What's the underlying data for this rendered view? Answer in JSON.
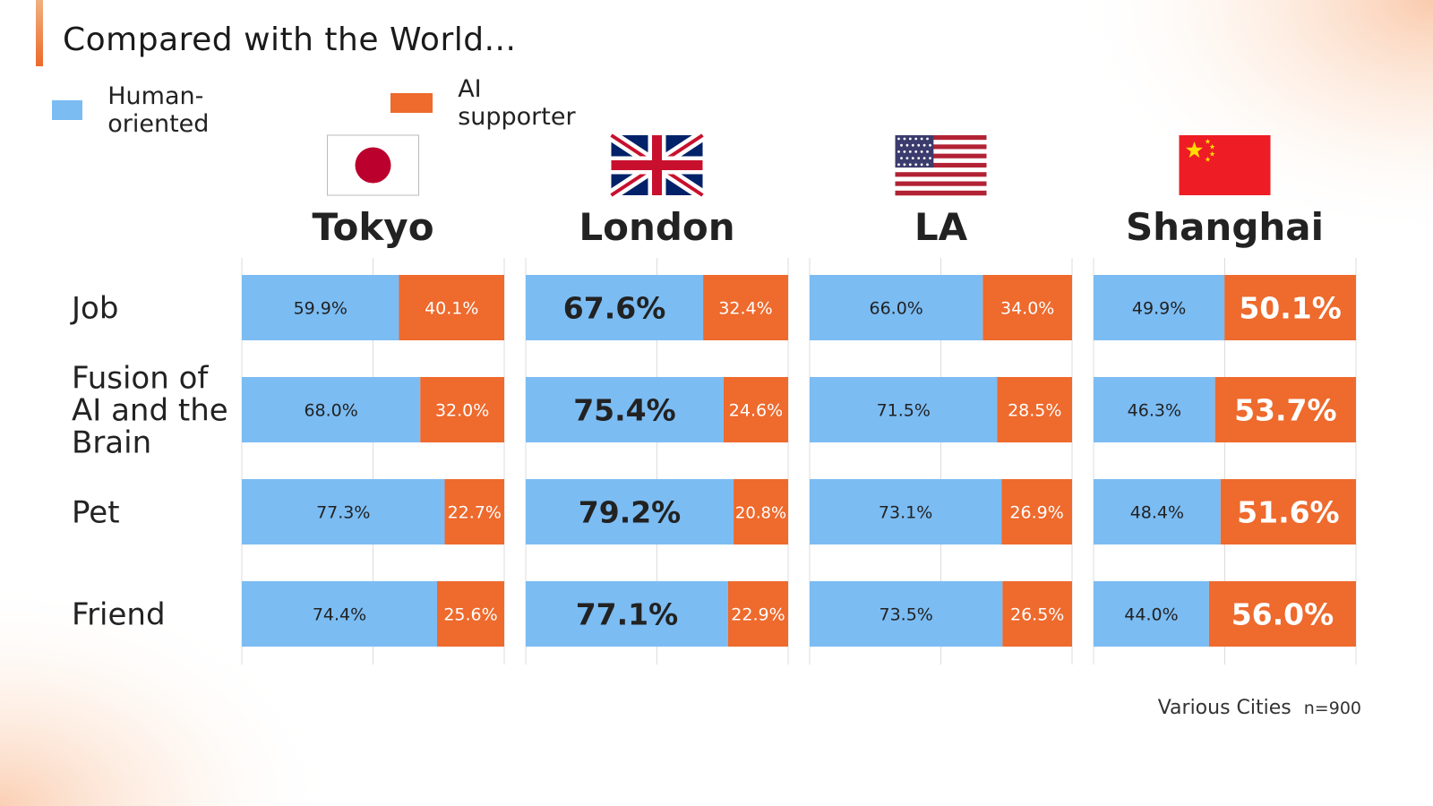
{
  "title": "Compared with the World...",
  "legend": [
    {
      "label": "Human-oriented",
      "color": "#7bbcf3"
    },
    {
      "label": "AI supporter",
      "color": "#ee6a2d"
    }
  ],
  "footnote": {
    "source": "Various Cities",
    "n": "n=900"
  },
  "chart_data": {
    "type": "bar",
    "orientation": "horizontal",
    "stacked": "100%",
    "categories": [
      "Job",
      "Fusion of AI and the Brain",
      "Pet",
      "Friend"
    ],
    "colors": {
      "human": "#7bbcf3",
      "ai": "#ee6a2d"
    },
    "panels": [
      {
        "city": "Tokyo",
        "flag": "japan-flag",
        "series": [
          {
            "name": "Human-oriented",
            "values": [
              59.9,
              68.0,
              77.3,
              74.4
            ],
            "labels": [
              "59.9%",
              "68.0%",
              "77.3%",
              "74.4%"
            ]
          },
          {
            "name": "AI supporter",
            "values": [
              40.1,
              32.0,
              22.7,
              25.6
            ],
            "labels": [
              "40.1%",
              "32.0%",
              "22.7%",
              "25.6%"
            ]
          }
        ]
      },
      {
        "city": "London",
        "flag": "uk-flag",
        "series": [
          {
            "name": "Human-oriented",
            "values": [
              67.6,
              75.4,
              79.2,
              77.1
            ],
            "labels": [
              "67.6%",
              "75.4%",
              "79.2%",
              "77.1%"
            ]
          },
          {
            "name": "AI supporter",
            "values": [
              32.4,
              24.6,
              20.8,
              22.9
            ],
            "labels": [
              "32.4%",
              "24.6%",
              "20.8%",
              "22.9%"
            ]
          }
        ]
      },
      {
        "city": "LA",
        "flag": "usa-flag",
        "series": [
          {
            "name": "Human-oriented",
            "values": [
              66.0,
              71.5,
              73.1,
              73.5
            ],
            "labels": [
              "66.0%",
              "71.5%",
              "73.1%",
              "73.5%"
            ]
          },
          {
            "name": "AI supporter",
            "values": [
              34.0,
              28.5,
              26.9,
              26.5
            ],
            "labels": [
              "34.0%",
              "28.5%",
              "26.9%",
              "26.5%"
            ]
          }
        ]
      },
      {
        "city": "Shanghai",
        "flag": "china-flag",
        "series": [
          {
            "name": "Human-oriented",
            "values": [
              49.9,
              46.3,
              48.4,
              44.0
            ],
            "labels": [
              "49.9%",
              "46.3%",
              "48.4%",
              "44.0%"
            ]
          },
          {
            "name": "AI supporter",
            "values": [
              50.1,
              53.7,
              51.6,
              56.0
            ],
            "labels": [
              "50.1%",
              "53.7%",
              "51.6%",
              "56.0%"
            ]
          }
        ]
      }
    ],
    "highlight": {
      "London": "Human-oriented",
      "Shanghai": "AI supporter"
    }
  }
}
